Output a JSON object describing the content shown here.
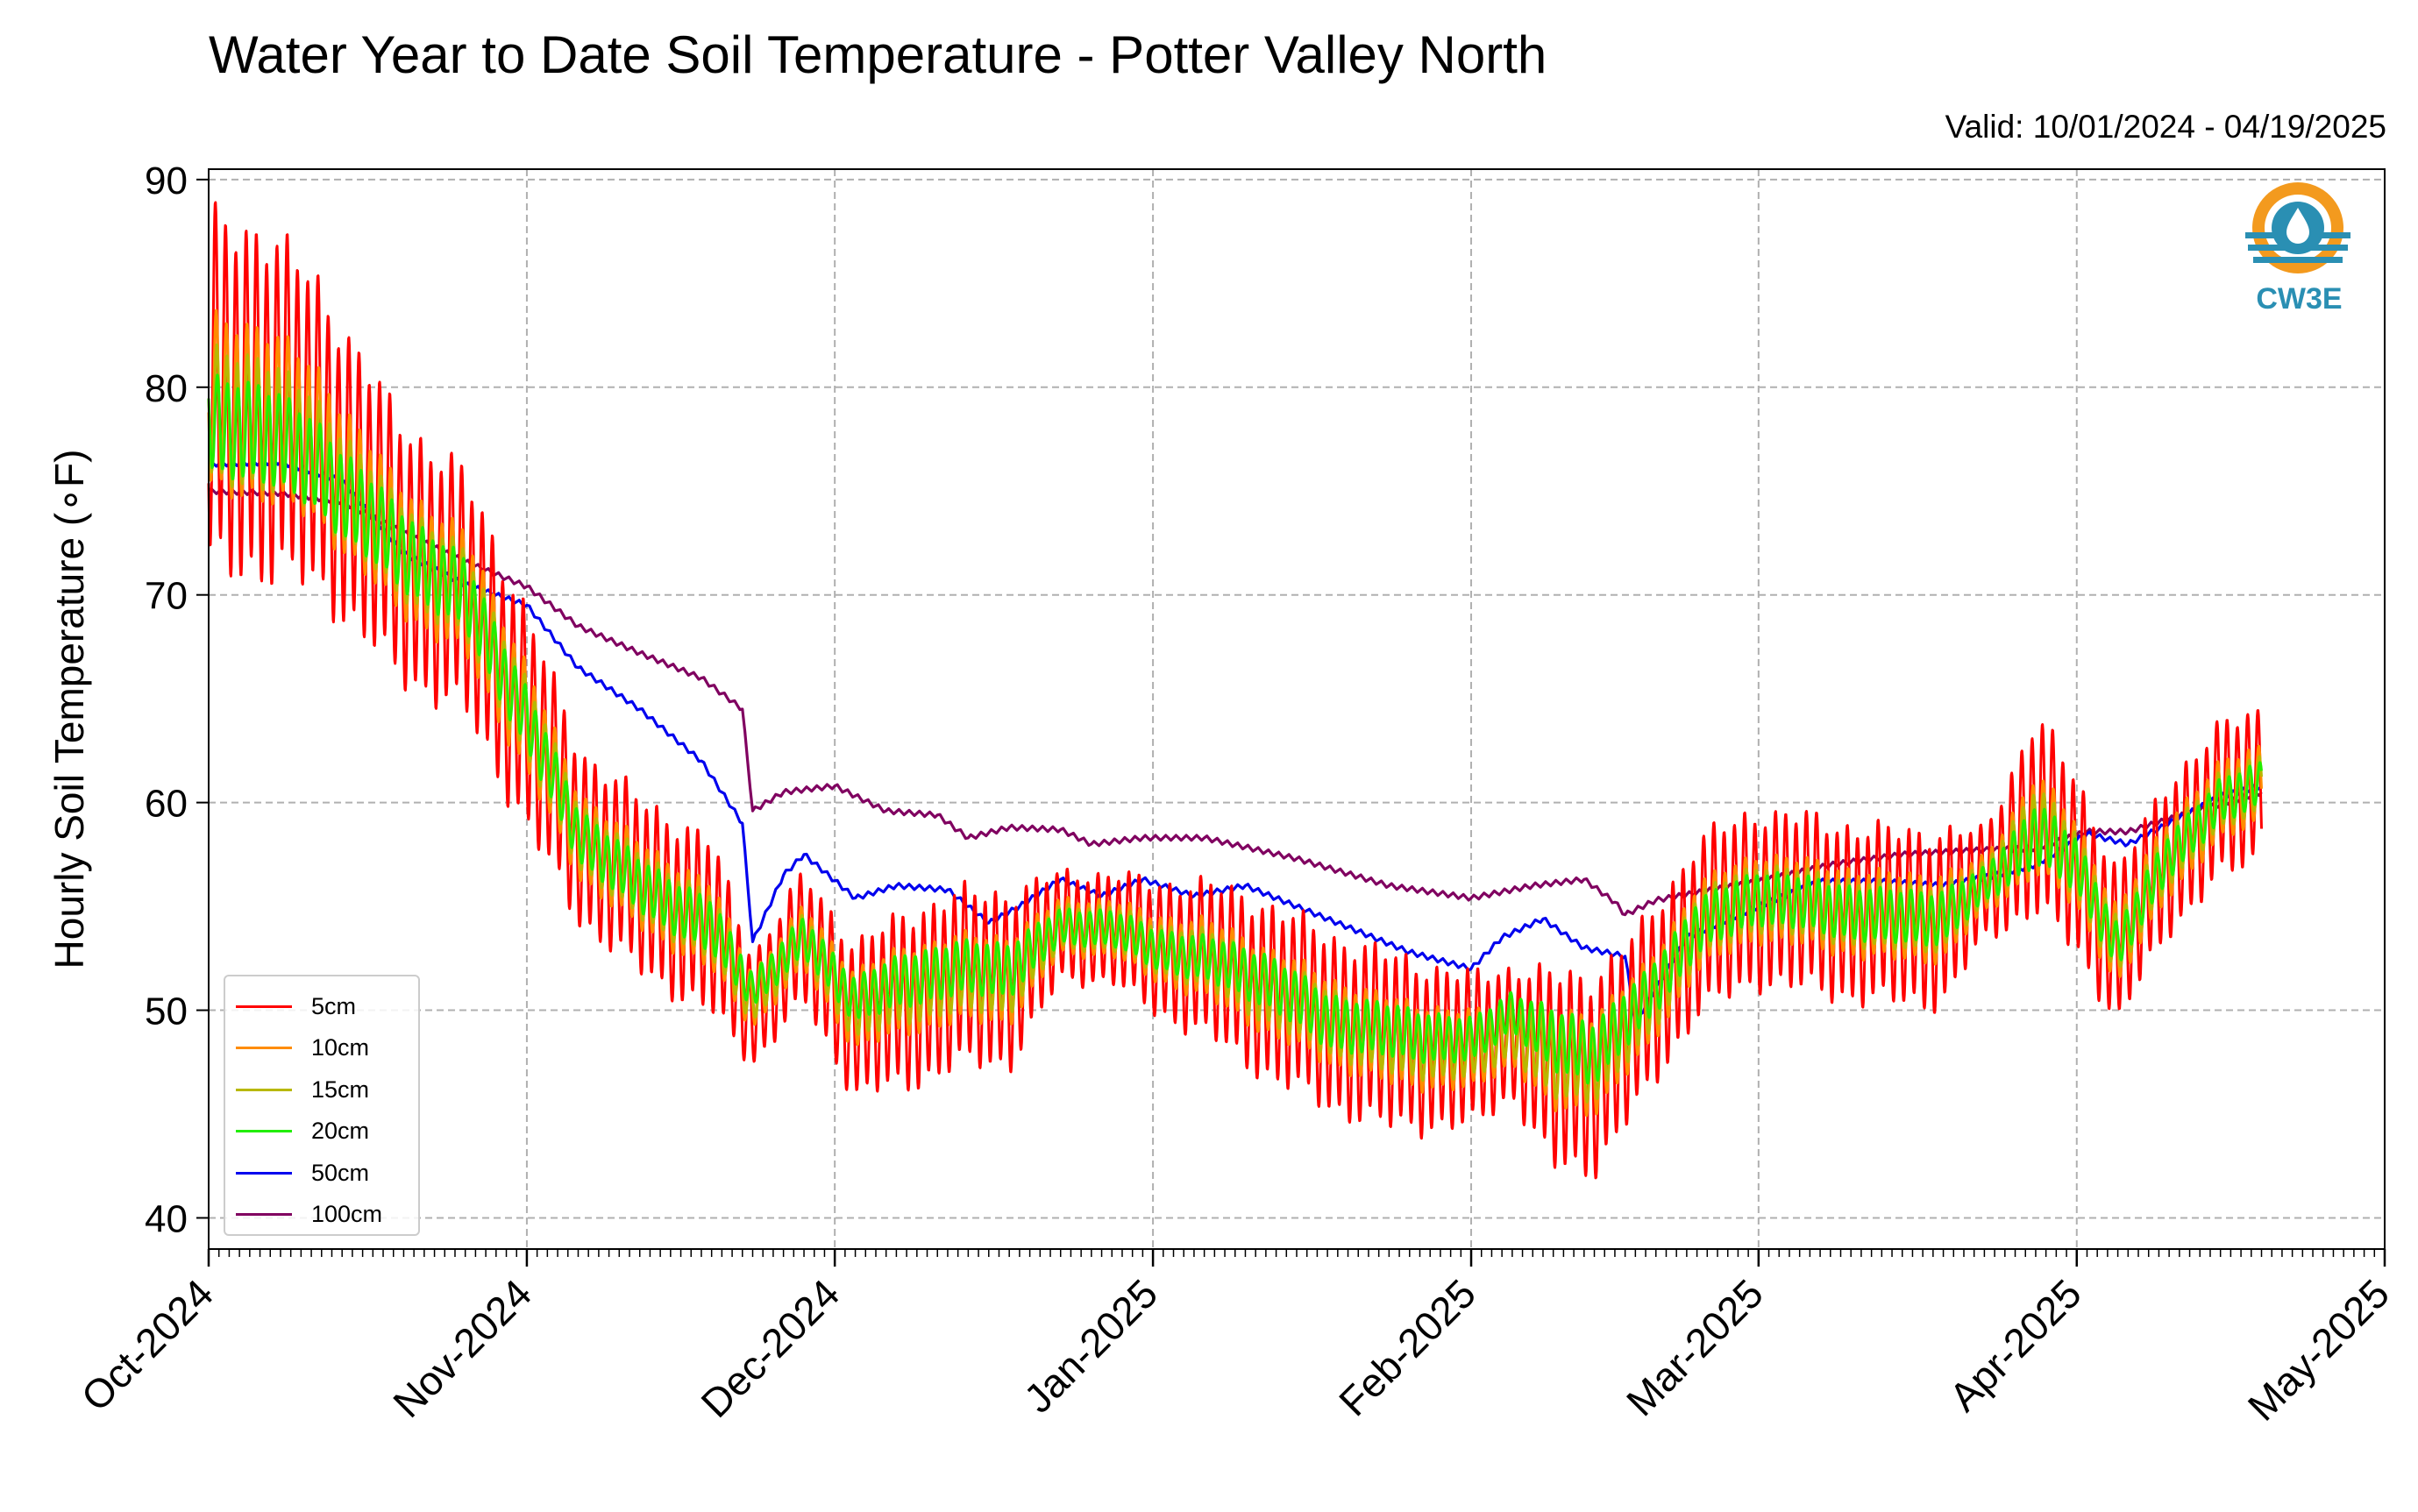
{
  "chart_data": {
    "type": "line",
    "title": "Water Year to Date Soil Temperature - Potter Valley North",
    "subtitle": "Valid: 10/01/2024 - 04/19/2025",
    "xlabel": "",
    "ylabel": "Hourly Soil Temperature (∘F)",
    "ylim": [
      38.5,
      90.5
    ],
    "yticks": [
      40,
      50,
      60,
      70,
      80,
      90
    ],
    "xlim": [
      "2024-10-01",
      "2025-05-01"
    ],
    "xticks": [
      "Oct-2024",
      "Nov-2024",
      "Dec-2024",
      "Jan-2025",
      "Feb-2025",
      "Mar-2025",
      "Apr-2025",
      "May-2025"
    ],
    "grid": true,
    "legend_position": "lower-left",
    "logo_text": "CW3E",
    "series": [
      {
        "name": "5cm",
        "color": "#ff0000",
        "x": [
          "2024-10-01",
          "2024-10-06",
          "2024-10-12",
          "2024-10-19",
          "2024-10-26",
          "2024-11-01",
          "2024-11-06",
          "2024-11-12",
          "2024-11-19",
          "2024-11-23",
          "2024-11-28",
          "2024-12-03",
          "2024-12-08",
          "2024-12-13",
          "2024-12-18",
          "2024-12-23",
          "2024-12-28",
          "2025-01-01",
          "2025-01-06",
          "2025-01-12",
          "2025-01-18",
          "2025-01-24",
          "2025-02-01",
          "2025-02-05",
          "2025-02-09",
          "2025-02-13",
          "2025-02-18",
          "2025-02-23",
          "2025-03-01",
          "2025-03-07",
          "2025-03-13",
          "2025-03-19",
          "2025-03-23",
          "2025-03-28",
          "2025-04-01",
          "2025-04-05",
          "2025-04-10",
          "2025-04-15",
          "2025-04-19"
        ],
        "mean": [
          79.5,
          79.5,
          77.5,
          72.5,
          70.0,
          64.0,
          58.5,
          56.0,
          54.0,
          50.0,
          53.5,
          49.5,
          50.5,
          51.5,
          51.5,
          54.0,
          54.0,
          53.0,
          52.5,
          51.0,
          49.5,
          48.5,
          48.0,
          49.0,
          47.0,
          47.0,
          50.0,
          54.0,
          55.5,
          55.0,
          54.5,
          54.5,
          56.0,
          59.5,
          57.0,
          53.0,
          57.5,
          60.0,
          61.0
        ],
        "amp": [
          8.0,
          8.0,
          7.0,
          6.0,
          5.5,
          5.0,
          4.0,
          4.0,
          4.0,
          2.5,
          3.0,
          3.5,
          4.0,
          4.0,
          4.0,
          2.5,
          2.5,
          3.0,
          3.5,
          4.0,
          4.0,
          4.0,
          3.5,
          3.0,
          4.5,
          4.5,
          4.0,
          4.0,
          4.0,
          4.0,
          4.0,
          4.0,
          2.5,
          4.5,
          4.0,
          3.5,
          3.5,
          3.5,
          3.5
        ]
      },
      {
        "name": "10cm",
        "color": "#ff8c00",
        "x": [
          "2024-10-01",
          "2024-10-06",
          "2024-10-12",
          "2024-10-19",
          "2024-10-26",
          "2024-11-01",
          "2024-11-06",
          "2024-11-12",
          "2024-11-19",
          "2024-11-23",
          "2024-11-28",
          "2024-12-03",
          "2024-12-08",
          "2024-12-13",
          "2024-12-18",
          "2024-12-23",
          "2024-12-28",
          "2025-01-01",
          "2025-01-06",
          "2025-01-12",
          "2025-01-18",
          "2025-01-24",
          "2025-02-01",
          "2025-02-05",
          "2025-02-09",
          "2025-02-13",
          "2025-02-18",
          "2025-02-23",
          "2025-03-01",
          "2025-03-07",
          "2025-03-13",
          "2025-03-19",
          "2025-03-23",
          "2025-03-28",
          "2025-04-01",
          "2025-04-05",
          "2025-04-10",
          "2025-04-15",
          "2025-04-19"
        ],
        "mean": [
          79.0,
          79.0,
          77.0,
          72.5,
          70.0,
          64.0,
          58.5,
          56.0,
          54.0,
          50.5,
          53.5,
          50.0,
          51.0,
          51.5,
          51.5,
          54.0,
          54.0,
          53.0,
          52.5,
          51.0,
          49.5,
          48.5,
          48.0,
          49.0,
          47.5,
          47.5,
          50.0,
          54.0,
          55.5,
          55.0,
          54.5,
          54.5,
          56.0,
          59.0,
          57.0,
          53.0,
          57.5,
          60.0,
          61.0
        ],
        "amp": [
          4.0,
          4.0,
          3.5,
          3.0,
          2.8,
          2.5,
          2.0,
          2.0,
          2.0,
          1.3,
          1.5,
          1.8,
          2.0,
          2.0,
          2.0,
          1.3,
          1.3,
          1.5,
          1.8,
          2.0,
          2.0,
          2.0,
          1.8,
          1.5,
          2.3,
          2.3,
          2.0,
          2.0,
          2.0,
          2.0,
          2.0,
          2.0,
          1.3,
          2.3,
          2.0,
          1.8,
          1.8,
          1.8,
          1.8
        ]
      },
      {
        "name": "15cm",
        "color": "#b8b800",
        "x": [
          "2024-10-01",
          "2024-10-06",
          "2024-10-12",
          "2024-10-19",
          "2024-10-26",
          "2024-11-01",
          "2024-11-06",
          "2024-11-12",
          "2024-11-19",
          "2024-11-23",
          "2024-11-28",
          "2024-12-03",
          "2024-12-08",
          "2024-12-13",
          "2024-12-18",
          "2024-12-23",
          "2024-12-28",
          "2025-01-01",
          "2025-01-06",
          "2025-01-12",
          "2025-01-18",
          "2025-01-24",
          "2025-02-01",
          "2025-02-05",
          "2025-02-09",
          "2025-02-13",
          "2025-02-18",
          "2025-02-23",
          "2025-03-01",
          "2025-03-07",
          "2025-03-13",
          "2025-03-19",
          "2025-03-23",
          "2025-03-28",
          "2025-04-01",
          "2025-04-05",
          "2025-04-10",
          "2025-04-15",
          "2025-04-19"
        ],
        "mean": [
          78.5,
          78.5,
          76.5,
          72.5,
          70.0,
          64.0,
          58.5,
          56.0,
          54.0,
          50.5,
          53.5,
          50.0,
          51.0,
          51.5,
          51.5,
          54.0,
          54.0,
          53.0,
          52.5,
          51.0,
          49.5,
          48.5,
          48.0,
          49.0,
          47.5,
          47.5,
          50.0,
          54.0,
          55.5,
          55.0,
          54.5,
          54.5,
          56.0,
          59.0,
          57.0,
          53.0,
          57.5,
          60.0,
          61.0
        ],
        "amp": [
          3.0,
          3.0,
          2.5,
          2.2,
          2.0,
          1.8,
          1.5,
          1.5,
          1.5,
          1.0,
          1.1,
          1.3,
          1.5,
          1.5,
          1.5,
          1.0,
          1.0,
          1.1,
          1.3,
          1.5,
          1.5,
          1.5,
          1.3,
          1.1,
          1.7,
          1.7,
          1.5,
          1.5,
          1.5,
          1.5,
          1.5,
          1.5,
          1.0,
          1.7,
          1.5,
          1.3,
          1.3,
          1.3,
          1.3
        ]
      },
      {
        "name": "20cm",
        "color": "#22ee00",
        "x": [
          "2024-10-01",
          "2024-10-06",
          "2024-10-12",
          "2024-10-19",
          "2024-10-26",
          "2024-11-01",
          "2024-11-06",
          "2024-11-12",
          "2024-11-19",
          "2024-11-23",
          "2024-11-28",
          "2024-12-03",
          "2024-12-08",
          "2024-12-13",
          "2024-12-18",
          "2024-12-23",
          "2024-12-28",
          "2025-01-01",
          "2025-01-06",
          "2025-01-12",
          "2025-01-18",
          "2025-01-24",
          "2025-02-01",
          "2025-02-05",
          "2025-02-09",
          "2025-02-13",
          "2025-02-18",
          "2025-02-23",
          "2025-03-01",
          "2025-03-07",
          "2025-03-13",
          "2025-03-19",
          "2025-03-23",
          "2025-03-28",
          "2025-04-01",
          "2025-04-05",
          "2025-04-10",
          "2025-04-15",
          "2025-04-19"
        ],
        "mean": [
          78.0,
          78.0,
          76.0,
          72.5,
          70.0,
          64.0,
          58.5,
          56.0,
          54.0,
          51.0,
          53.5,
          50.5,
          51.5,
          52.0,
          52.0,
          54.0,
          54.0,
          53.0,
          52.5,
          51.5,
          49.5,
          49.0,
          48.5,
          50.0,
          48.5,
          48.0,
          50.5,
          54.0,
          55.5,
          55.0,
          54.5,
          54.5,
          56.0,
          58.5,
          57.0,
          53.0,
          57.5,
          60.0,
          61.0
        ],
        "amp": [
          2.2,
          2.2,
          2.0,
          1.8,
          1.6,
          1.4,
          1.2,
          1.2,
          1.2,
          0.8,
          0.9,
          1.0,
          1.2,
          1.2,
          1.2,
          0.8,
          0.8,
          0.9,
          1.0,
          1.2,
          1.2,
          1.2,
          1.0,
          0.9,
          1.4,
          1.4,
          1.2,
          1.2,
          1.2,
          1.2,
          1.2,
          1.2,
          0.8,
          1.4,
          1.2,
          1.0,
          1.0,
          1.0,
          1.0
        ]
      },
      {
        "name": "50cm",
        "color": "#0000ee",
        "x": [
          "2024-10-01",
          "2024-10-08",
          "2024-10-14",
          "2024-10-20",
          "2024-10-26",
          "2024-11-01",
          "2024-11-06",
          "2024-11-12",
          "2024-11-18",
          "2024-11-22",
          "2024-11-23",
          "2024-11-26",
          "2024-11-28",
          "2024-12-03",
          "2024-12-07",
          "2024-12-12",
          "2024-12-16",
          "2024-12-19",
          "2024-12-23",
          "2024-12-27",
          "2024-12-31",
          "2025-01-05",
          "2025-01-10",
          "2025-01-15",
          "2025-01-20",
          "2025-01-26",
          "2025-02-01",
          "2025-02-04",
          "2025-02-08",
          "2025-02-12",
          "2025-02-16",
          "2025-02-17",
          "2025-02-22",
          "2025-03-01",
          "2025-03-07",
          "2025-03-13",
          "2025-03-19",
          "2025-03-24",
          "2025-03-28",
          "2025-04-02",
          "2025-04-06",
          "2025-04-10",
          "2025-04-15",
          "2025-04-19"
        ],
        "y": [
          76.3,
          76.4,
          75.5,
          72.0,
          70.5,
          69.5,
          66.5,
          64.5,
          62.0,
          59.0,
          53.3,
          56.5,
          57.5,
          55.4,
          56.0,
          55.8,
          54.2,
          55.0,
          56.3,
          55.5,
          56.3,
          55.5,
          56.0,
          55.0,
          54.0,
          52.8,
          52.0,
          53.5,
          54.4,
          53.0,
          52.6,
          49.4,
          53.5,
          55.0,
          56.2,
          56.2,
          56.0,
          56.5,
          57.0,
          58.5,
          58.0,
          59.0,
          60.3,
          60.8
        ]
      },
      {
        "name": "100cm",
        "color": "#800060",
        "x": [
          "2024-10-01",
          "2024-10-08",
          "2024-10-14",
          "2024-10-20",
          "2024-10-26",
          "2024-11-01",
          "2024-11-06",
          "2024-11-12",
          "2024-11-18",
          "2024-11-22",
          "2024-11-23",
          "2024-11-26",
          "2024-12-01",
          "2024-12-06",
          "2024-12-11",
          "2024-12-14",
          "2024-12-18",
          "2024-12-23",
          "2024-12-26",
          "2024-12-31",
          "2025-01-06",
          "2025-01-15",
          "2025-01-24",
          "2025-02-01",
          "2025-02-07",
          "2025-02-12",
          "2025-02-15",
          "2025-02-16",
          "2025-02-19",
          "2025-03-01",
          "2025-03-08",
          "2025-03-15",
          "2025-03-22",
          "2025-03-28",
          "2025-04-02",
          "2025-04-06",
          "2025-04-12",
          "2025-04-19"
        ],
        "y": [
          75.0,
          74.9,
          74.5,
          73.0,
          71.6,
          70.4,
          68.5,
          67.2,
          66.0,
          64.5,
          59.6,
          60.5,
          60.8,
          59.6,
          59.4,
          58.3,
          58.8,
          58.7,
          58.0,
          58.3,
          58.3,
          57.3,
          56.0,
          55.4,
          56.0,
          56.3,
          55.2,
          54.6,
          55.3,
          56.2,
          57.0,
          57.5,
          57.7,
          57.8,
          58.6,
          58.6,
          59.5,
          60.5
        ]
      }
    ]
  }
}
